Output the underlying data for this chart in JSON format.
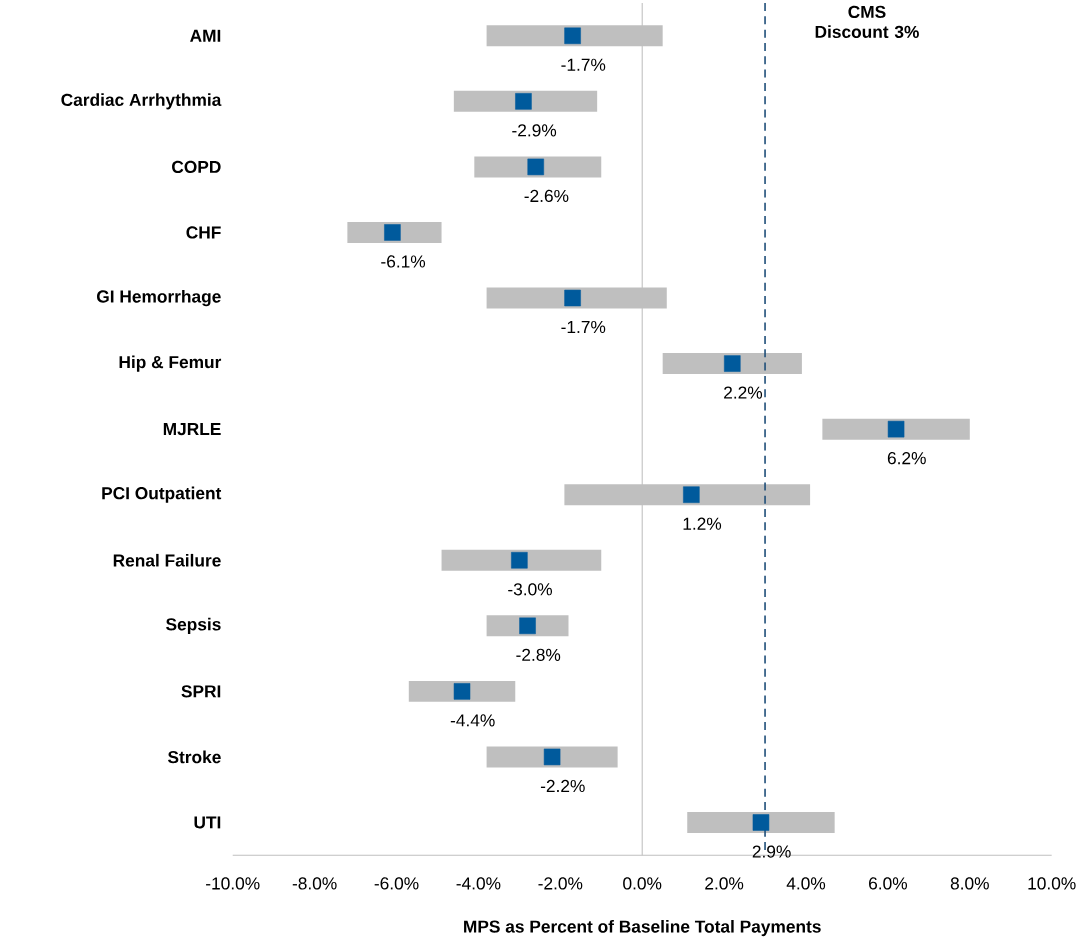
{
  "chart_data": {
    "type": "bar",
    "orientation": "horizontal",
    "xlabel": "MPS as Percent of Baseline Total Payments",
    "categories": [
      "AMI",
      "Cardiac Arrhythmia",
      "COPD",
      "CHF",
      "GI Hemorrhage",
      "Hip & Femur",
      "MJRLE",
      "PCI Outpatient",
      "Renal Failure",
      "Sepsis",
      "SPRI",
      "Stroke",
      "UTI"
    ],
    "series": [
      {
        "color": "#bfbfbf",
        "base": [
          -3.8,
          -4.6,
          -4.1,
          -7.2,
          -3.8,
          0.5,
          4.4,
          -1.9,
          -4.9,
          -3.8,
          -5.7,
          -3.8,
          1.1
        ],
        "values": [
          4.3,
          3.5,
          3.1,
          2.3,
          4.4,
          3.4,
          3.6,
          6.0,
          3.9,
          2.0,
          2.6,
          3.2,
          3.6
        ]
      },
      {
        "type": "scatter",
        "color": "#005a9c",
        "marker": "square",
        "values": [
          -1.7,
          -2.9,
          -2.6,
          -6.1,
          -1.7,
          2.2,
          6.2,
          1.2,
          -3.0,
          -2.8,
          -4.4,
          -2.2,
          2.9
        ],
        "value_labels": [
          "-1.7%",
          "-2.9%",
          "-2.6%",
          "-6.1%",
          "-1.7%",
          "2.2%",
          "6.2%",
          "1.2%",
          "-3.0%",
          "-2.8%",
          "-4.4%",
          "-2.2%",
          "2.9%"
        ]
      }
    ],
    "xlim": [
      -10,
      10
    ],
    "xticks": [
      {
        "value": -10,
        "label": "-10.0%"
      },
      {
        "value": -8,
        "label": "-8.0%"
      },
      {
        "value": -6,
        "label": "-6.0%"
      },
      {
        "value": -4,
        "label": "-4.0%"
      },
      {
        "value": -2,
        "label": "-2.0%"
      },
      {
        "value": 0,
        "label": "0.0%"
      },
      {
        "value": 2,
        "label": "2.0%"
      },
      {
        "value": 4,
        "label": "4.0%"
      },
      {
        "value": 6,
        "label": "6.0%"
      },
      {
        "value": 8,
        "label": "8.0%"
      },
      {
        "value": 10,
        "label": "10.0%"
      }
    ],
    "ref_lines": [
      {
        "axis": "x",
        "value": 3,
        "label": "CMS Discount 3%",
        "color": "#1f4e79",
        "line_style": "dashed"
      }
    ]
  }
}
